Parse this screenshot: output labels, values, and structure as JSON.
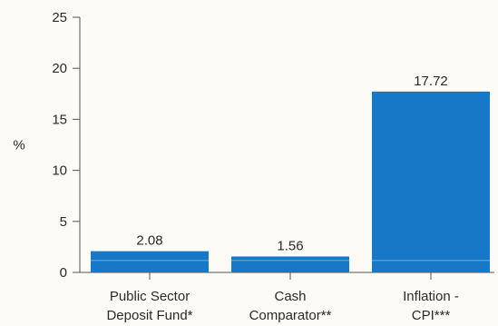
{
  "chart_data": {
    "type": "bar",
    "categories": [
      [
        "Public Sector",
        "Deposit Fund*"
      ],
      [
        "Cash",
        "Comparator**"
      ],
      [
        "Inflation -",
        "CPI***"
      ]
    ],
    "values": [
      2.08,
      1.56,
      17.72
    ],
    "value_labels": [
      "2.08",
      "1.56",
      "17.72"
    ],
    "ylabel": "%",
    "ylim": [
      0,
      25
    ],
    "yticks": [
      0,
      5,
      10,
      15,
      20,
      25
    ],
    "grid": false,
    "legend": "none",
    "colors": {
      "bar": "#1878c8",
      "bar_stripe": "#5aa4de",
      "axis": "#555555",
      "background": "#fdfbf6"
    }
  }
}
